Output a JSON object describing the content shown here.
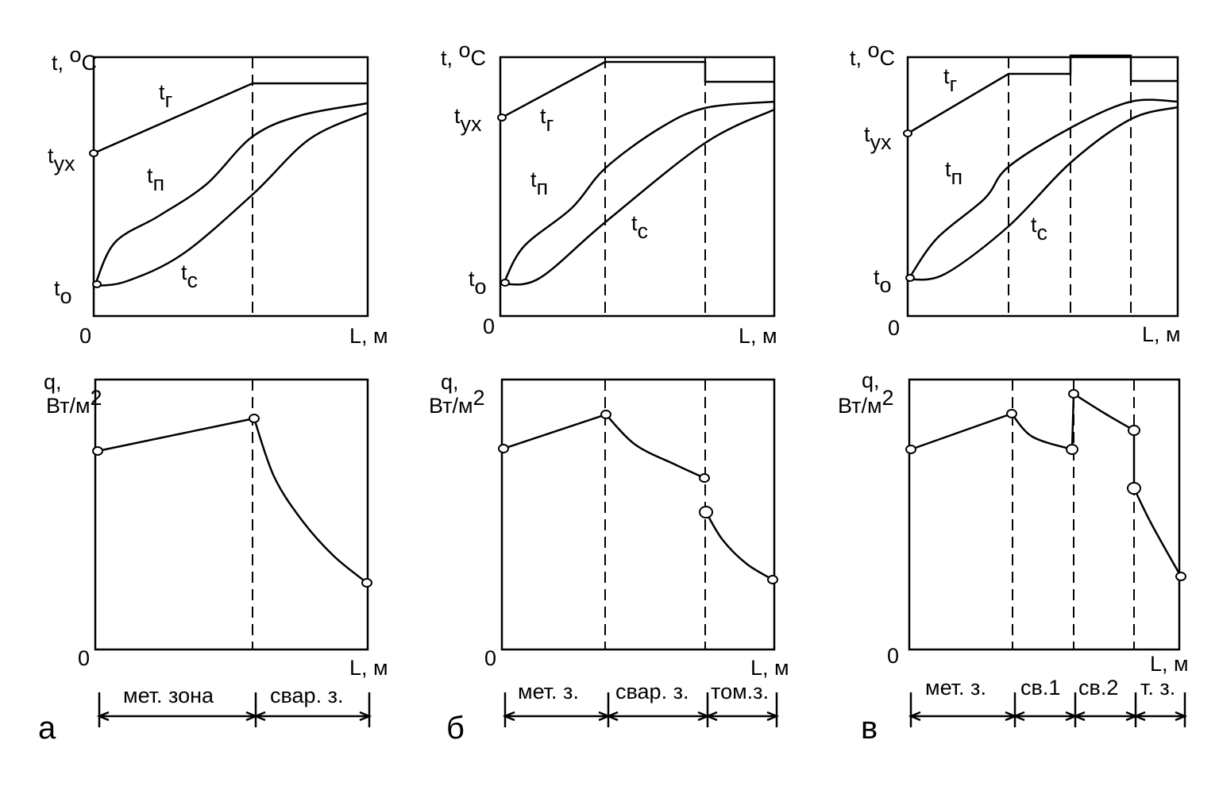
{
  "panels": [
    {
      "letter": "а",
      "top": {
        "y_axis": [
          "t, ",
          "o",
          "C"
        ],
        "origin": "0",
        "x_axis": "L, м",
        "labels": [
          [
            "t",
            "г"
          ],
          [
            "t",
            "ух"
          ],
          [
            "t",
            "п"
          ],
          [
            "t",
            "с"
          ],
          [
            "t",
            "о"
          ]
        ]
      },
      "bottom": {
        "y_axis": [
          "q,",
          "Вт/м",
          "2"
        ],
        "origin": "0",
        "x_axis": "L, м"
      },
      "zones": [
        "мет. зона",
        "свар. з."
      ]
    },
    {
      "letter": "б",
      "top": {
        "y_axis": [
          "t, ",
          "o",
          "C"
        ],
        "origin": "0",
        "x_axis": "L, м",
        "labels": [
          [
            "t",
            "г"
          ],
          [
            "t",
            "ух"
          ],
          [
            "t",
            "п"
          ],
          [
            "t",
            "с"
          ],
          [
            "t",
            "о"
          ]
        ]
      },
      "bottom": {
        "y_axis": [
          "q,",
          "Вт/м",
          "2"
        ],
        "origin": "0",
        "x_axis": "L, м"
      },
      "zones": [
        "мет. з.",
        "свар. з.",
        "том.з."
      ]
    },
    {
      "letter": "в",
      "top": {
        "y_axis": [
          "t, ",
          "o",
          "C"
        ],
        "origin": "0",
        "x_axis": "L, м",
        "labels": [
          [
            "t",
            "г"
          ],
          [
            "t",
            "ух"
          ],
          [
            "t",
            "п"
          ],
          [
            "t",
            "с"
          ],
          [
            "t",
            "о"
          ]
        ]
      },
      "bottom": {
        "y_axis": [
          "q,",
          "Вт/м",
          "2"
        ],
        "origin": "0",
        "x_axis": "L, м"
      },
      "zones": [
        "мет. з.",
        "св.1",
        "св.2",
        "т. з."
      ]
    }
  ]
}
